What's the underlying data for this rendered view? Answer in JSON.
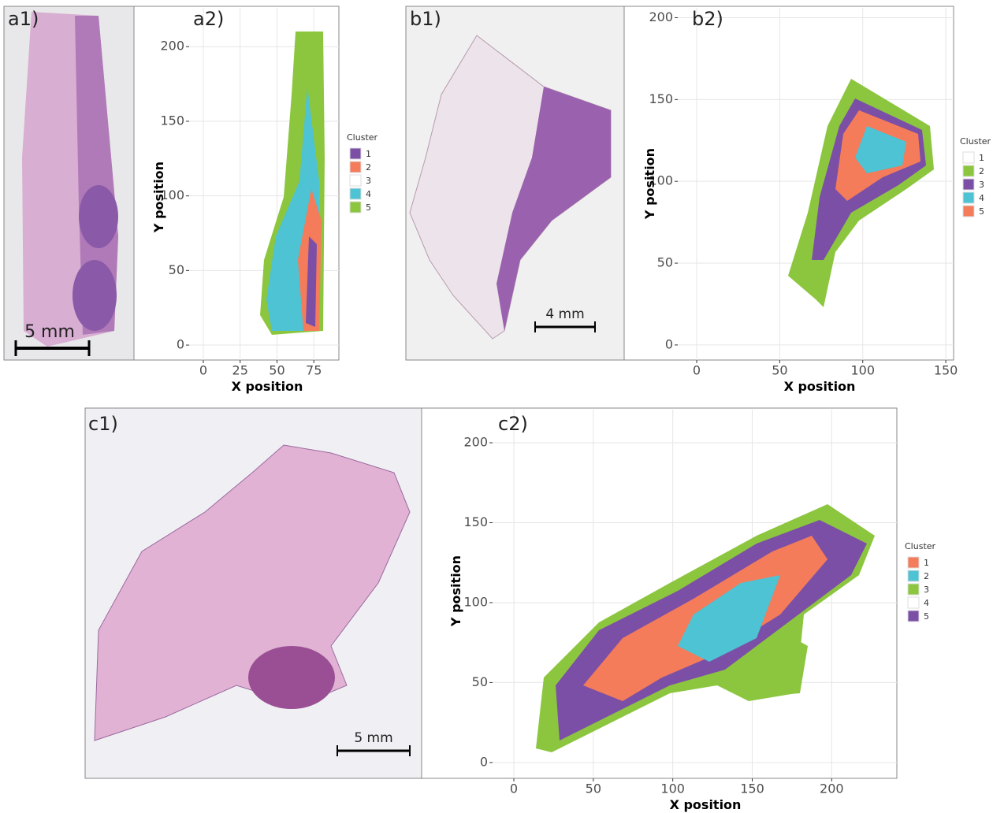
{
  "panels": [
    {
      "label": "a1)",
      "scale_bar": "5 mm"
    },
    {
      "label": "a2)",
      "type": "scatter",
      "x_label": "X position",
      "y_label": "Y position",
      "xlim": [
        -9.6,
        92
      ],
      "ylim": [
        -10,
        226
      ],
      "xticks": [
        0,
        25,
        50,
        75
      ],
      "yticks": [
        0,
        50,
        100,
        150,
        200
      ],
      "grid": true,
      "legend_title": "Cluster",
      "legend": [
        {
          "name": "1",
          "color": "#7b4fa6"
        },
        {
          "name": "2",
          "color": "#f47c5a"
        },
        {
          "name": "3",
          "color": "#ffffff"
        },
        {
          "name": "4",
          "color": "#4dc3d3"
        },
        {
          "name": "5",
          "color": "#8cc63f"
        }
      ]
    },
    {
      "label": "b1)",
      "scale_bar": "4 mm"
    },
    {
      "label": "b2)",
      "type": "scatter",
      "x_label": "X position",
      "y_label": "Y position",
      "xlim": [
        -11.4,
        154.7
      ],
      "ylim": [
        -9.2,
        206
      ],
      "xticks": [
        0,
        50,
        100,
        150
      ],
      "yticks": [
        0,
        50,
        100,
        150,
        200
      ],
      "grid": true,
      "legend_title": "Cluster",
      "legend": [
        {
          "name": "1",
          "color": "#ffffff"
        },
        {
          "name": "2",
          "color": "#8cc63f"
        },
        {
          "name": "3",
          "color": "#7b4fa6"
        },
        {
          "name": "4",
          "color": "#4dc3d3"
        },
        {
          "name": "5",
          "color": "#f47c5a"
        }
      ]
    },
    {
      "label": "c1)",
      "scale_bar": "5 mm"
    },
    {
      "label": "c2)",
      "type": "scatter",
      "x_label": "X position",
      "y_label": "Y position",
      "xlim": [
        -13.4,
        241
      ],
      "ylim": [
        -9.9,
        220.7
      ],
      "xticks": [
        0,
        50,
        100,
        150,
        200
      ],
      "yticks": [
        0,
        50,
        100,
        150,
        200
      ],
      "grid": true,
      "legend_title": "Cluster",
      "legend": [
        {
          "name": "1",
          "color": "#f47c5a"
        },
        {
          "name": "2",
          "color": "#4dc3d3"
        },
        {
          "name": "3",
          "color": "#8cc63f"
        },
        {
          "name": "4",
          "color": "#ffffff"
        },
        {
          "name": "5",
          "color": "#7b4fa6"
        }
      ]
    }
  ]
}
